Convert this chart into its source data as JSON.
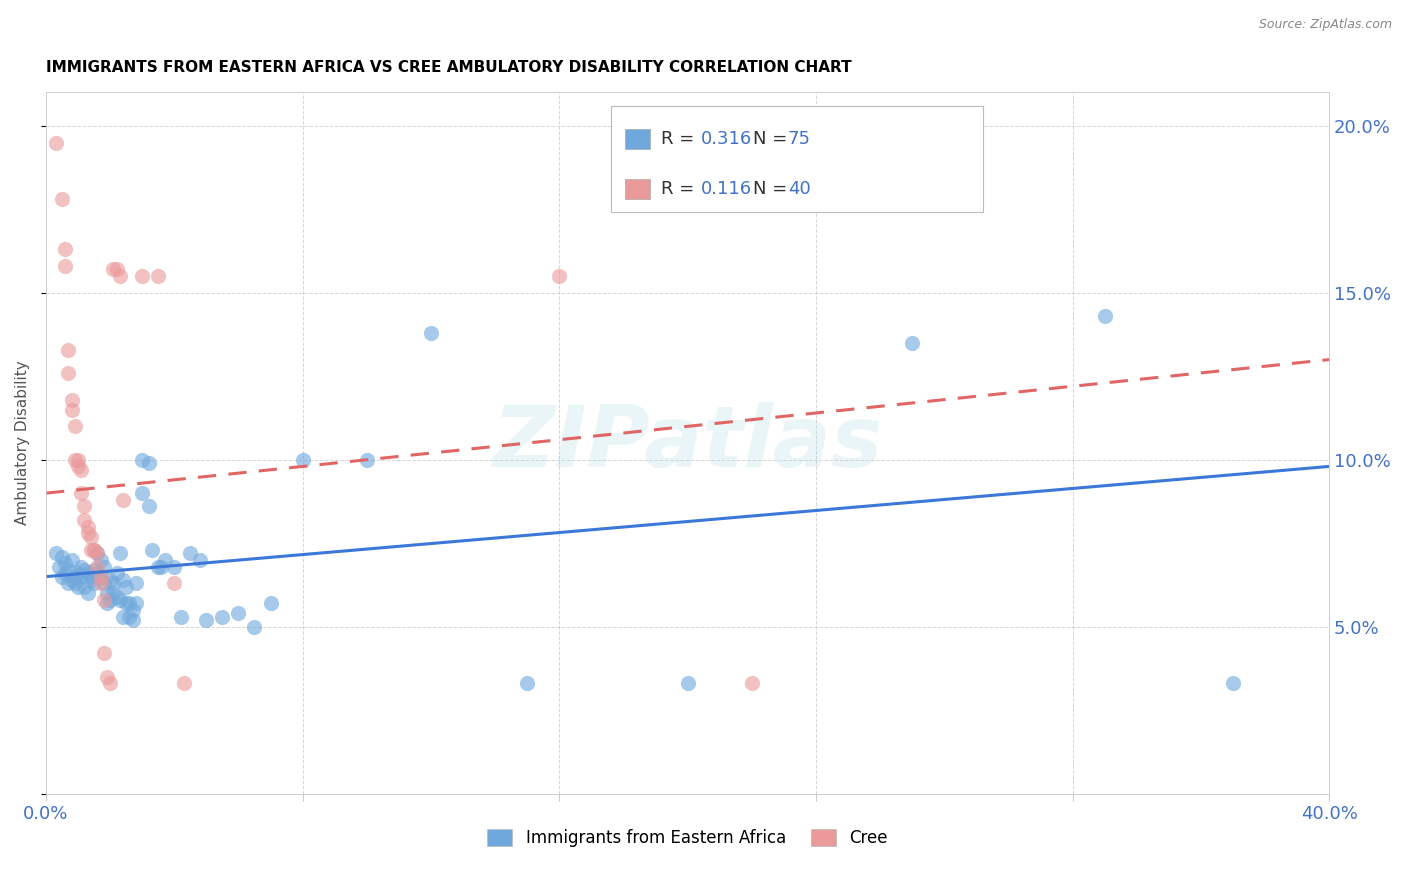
{
  "title": "IMMIGRANTS FROM EASTERN AFRICA VS CREE AMBULATORY DISABILITY CORRELATION CHART",
  "source": "Source: ZipAtlas.com",
  "ylabel_label": "Ambulatory Disability",
  "xlim": [
    0.0,
    0.4
  ],
  "ylim": [
    0.0,
    0.21
  ],
  "x_ticks": [
    0.0,
    0.08,
    0.16,
    0.24,
    0.32,
    0.4
  ],
  "y_ticks": [
    0.0,
    0.05,
    0.1,
    0.15,
    0.2
  ],
  "blue_R": "0.316",
  "blue_N": "75",
  "pink_R": "0.116",
  "pink_N": "40",
  "watermark": "ZIPatlas",
  "blue_color": "#6fa8dc",
  "pink_color": "#ea9999",
  "blue_line_color": "#3c78d8",
  "pink_line_color": "#e06666",
  "blue_scatter": [
    [
      0.003,
      0.072
    ],
    [
      0.004,
      0.068
    ],
    [
      0.005,
      0.071
    ],
    [
      0.005,
      0.065
    ],
    [
      0.006,
      0.069
    ],
    [
      0.006,
      0.066
    ],
    [
      0.007,
      0.067
    ],
    [
      0.007,
      0.063
    ],
    [
      0.008,
      0.064
    ],
    [
      0.008,
      0.07
    ],
    [
      0.009,
      0.065
    ],
    [
      0.009,
      0.063
    ],
    [
      0.01,
      0.066
    ],
    [
      0.01,
      0.062
    ],
    [
      0.011,
      0.065
    ],
    [
      0.011,
      0.068
    ],
    [
      0.012,
      0.067
    ],
    [
      0.012,
      0.062
    ],
    [
      0.013,
      0.066
    ],
    [
      0.013,
      0.06
    ],
    [
      0.014,
      0.065
    ],
    [
      0.014,
      0.064
    ],
    [
      0.015,
      0.067
    ],
    [
      0.015,
      0.063
    ],
    [
      0.016,
      0.066
    ],
    [
      0.016,
      0.072
    ],
    [
      0.017,
      0.065
    ],
    [
      0.017,
      0.07
    ],
    [
      0.018,
      0.063
    ],
    [
      0.018,
      0.068
    ],
    [
      0.019,
      0.06
    ],
    [
      0.019,
      0.057
    ],
    [
      0.02,
      0.064
    ],
    [
      0.02,
      0.058
    ],
    [
      0.021,
      0.063
    ],
    [
      0.021,
      0.06
    ],
    [
      0.022,
      0.066
    ],
    [
      0.022,
      0.059
    ],
    [
      0.023,
      0.072
    ],
    [
      0.023,
      0.058
    ],
    [
      0.024,
      0.064
    ],
    [
      0.024,
      0.053
    ],
    [
      0.025,
      0.062
    ],
    [
      0.025,
      0.057
    ],
    [
      0.026,
      0.057
    ],
    [
      0.026,
      0.053
    ],
    [
      0.027,
      0.055
    ],
    [
      0.027,
      0.052
    ],
    [
      0.028,
      0.063
    ],
    [
      0.028,
      0.057
    ],
    [
      0.03,
      0.1
    ],
    [
      0.03,
      0.09
    ],
    [
      0.032,
      0.099
    ],
    [
      0.032,
      0.086
    ],
    [
      0.033,
      0.073
    ],
    [
      0.035,
      0.068
    ],
    [
      0.036,
      0.068
    ],
    [
      0.037,
      0.07
    ],
    [
      0.04,
      0.068
    ],
    [
      0.042,
      0.053
    ],
    [
      0.045,
      0.072
    ],
    [
      0.048,
      0.07
    ],
    [
      0.05,
      0.052
    ],
    [
      0.055,
      0.053
    ],
    [
      0.06,
      0.054
    ],
    [
      0.065,
      0.05
    ],
    [
      0.07,
      0.057
    ],
    [
      0.08,
      0.1
    ],
    [
      0.1,
      0.1
    ],
    [
      0.12,
      0.138
    ],
    [
      0.15,
      0.033
    ],
    [
      0.2,
      0.033
    ],
    [
      0.27,
      0.135
    ],
    [
      0.33,
      0.143
    ],
    [
      0.37,
      0.033
    ]
  ],
  "pink_scatter": [
    [
      0.003,
      0.195
    ],
    [
      0.005,
      0.178
    ],
    [
      0.006,
      0.163
    ],
    [
      0.006,
      0.158
    ],
    [
      0.007,
      0.133
    ],
    [
      0.007,
      0.126
    ],
    [
      0.008,
      0.118
    ],
    [
      0.008,
      0.115
    ],
    [
      0.009,
      0.11
    ],
    [
      0.009,
      0.1
    ],
    [
      0.01,
      0.1
    ],
    [
      0.01,
      0.098
    ],
    [
      0.011,
      0.097
    ],
    [
      0.011,
      0.09
    ],
    [
      0.012,
      0.086
    ],
    [
      0.012,
      0.082
    ],
    [
      0.013,
      0.08
    ],
    [
      0.013,
      0.078
    ],
    [
      0.014,
      0.077
    ],
    [
      0.014,
      0.073
    ],
    [
      0.015,
      0.073
    ],
    [
      0.015,
      0.073
    ],
    [
      0.016,
      0.072
    ],
    [
      0.016,
      0.068
    ],
    [
      0.017,
      0.065
    ],
    [
      0.017,
      0.063
    ],
    [
      0.018,
      0.058
    ],
    [
      0.018,
      0.042
    ],
    [
      0.019,
      0.035
    ],
    [
      0.02,
      0.033
    ],
    [
      0.021,
      0.157
    ],
    [
      0.022,
      0.157
    ],
    [
      0.023,
      0.155
    ],
    [
      0.024,
      0.088
    ],
    [
      0.03,
      0.155
    ],
    [
      0.035,
      0.155
    ],
    [
      0.04,
      0.063
    ],
    [
      0.043,
      0.033
    ],
    [
      0.16,
      0.155
    ],
    [
      0.22,
      0.033
    ]
  ],
  "blue_line": [
    [
      0.0,
      0.065
    ],
    [
      0.4,
      0.098
    ]
  ],
  "pink_line": [
    [
      0.0,
      0.09
    ],
    [
      0.4,
      0.13
    ]
  ],
  "background_color": "#ffffff",
  "grid_color": "#cccccc",
  "title_color": "#000000",
  "axis_color": "#4472c4",
  "label_color": "#555555"
}
